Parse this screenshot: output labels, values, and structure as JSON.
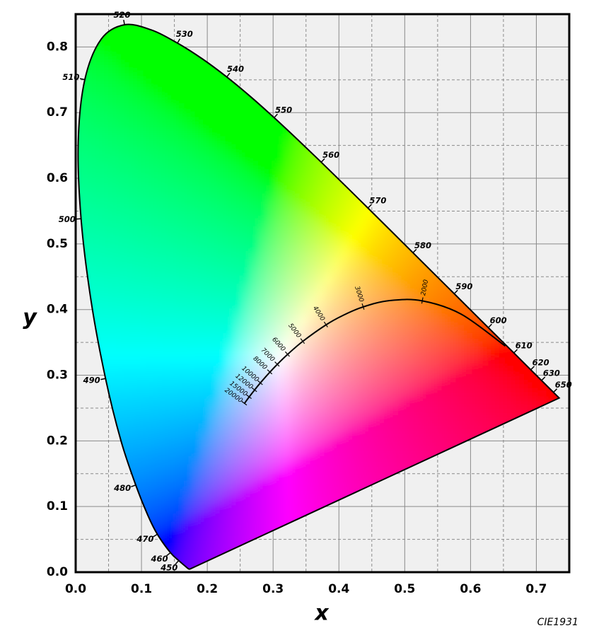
{
  "chart_data": {
    "type": "chromaticity",
    "xlabel": "x",
    "ylabel": "y",
    "note": "CIE1931",
    "xlim": [
      0,
      0.75
    ],
    "ylim": [
      0,
      0.85
    ],
    "xticks": [
      {
        "value": 0,
        "label": "0.0"
      },
      0.1,
      0.2,
      0.3,
      0.4,
      0.5,
      0.6,
      0.7
    ],
    "yticks": [
      {
        "value": 0,
        "label": "0.0"
      },
      0.1,
      0.2,
      0.3,
      0.4,
      0.5,
      0.6,
      0.7,
      0.8
    ],
    "xminor": [
      0.05,
      0.15,
      0.25,
      0.35,
      0.45,
      0.55,
      0.65
    ],
    "yminor": [
      0.05,
      0.15,
      0.25,
      0.35,
      0.45,
      0.55,
      0.65,
      0.75
    ],
    "grid": true,
    "spectral_locus": {
      "labels": [
        null,
        null,
        null,
        450,
        460,
        470,
        null,
        480,
        null,
        490,
        null,
        500,
        null,
        510,
        null,
        520,
        null,
        530,
        null,
        540,
        null,
        550,
        null,
        560,
        null,
        570,
        null,
        580,
        null,
        590,
        null,
        600,
        null,
        610,
        620,
        630,
        null,
        650,
        null
      ],
      "x": [
        0.1741,
        0.1714,
        0.1644,
        0.1566,
        0.144,
        0.1241,
        0.1096,
        0.0913,
        0.0687,
        0.0454,
        0.0235,
        0.0082,
        0.0039,
        0.0139,
        0.0389,
        0.0743,
        0.1142,
        0.1547,
        0.1929,
        0.2296,
        0.2658,
        0.3016,
        0.3373,
        0.3731,
        0.4087,
        0.4441,
        0.4788,
        0.5125,
        0.5448,
        0.5752,
        0.6029,
        0.627,
        0.6482,
        0.6658,
        0.6915,
        0.7079,
        0.719,
        0.726,
        0.7347
      ],
      "y": [
        0.005,
        0.0051,
        0.0109,
        0.0177,
        0.0297,
        0.0578,
        0.0868,
        0.1327,
        0.2007,
        0.295,
        0.4127,
        0.5384,
        0.6548,
        0.7502,
        0.812,
        0.8338,
        0.8262,
        0.8059,
        0.7816,
        0.7543,
        0.7243,
        0.6923,
        0.6589,
        0.6245,
        0.5896,
        0.5547,
        0.5202,
        0.4866,
        0.4544,
        0.4242,
        0.3965,
        0.3725,
        0.3514,
        0.334,
        0.3083,
        0.292,
        0.2809,
        0.274,
        0.2653
      ]
    },
    "planckian_locus": {
      "labels": [
        20000,
        15000,
        12000,
        10000,
        8000,
        7000,
        6000,
        5000,
        4000,
        null,
        3000,
        null,
        2000,
        null,
        null
      ],
      "x": [
        0.2565,
        0.2637,
        0.2719,
        0.2807,
        0.2952,
        0.3064,
        0.3221,
        0.3451,
        0.3805,
        0.4053,
        0.4369,
        0.477,
        0.5267,
        0.5857,
        0.6528
      ],
      "y": [
        0.2571,
        0.267,
        0.2776,
        0.2884,
        0.3048,
        0.3166,
        0.3318,
        0.3516,
        0.3768,
        0.3907,
        0.4041,
        0.4137,
        0.4133,
        0.3931,
        0.3444
      ]
    }
  }
}
